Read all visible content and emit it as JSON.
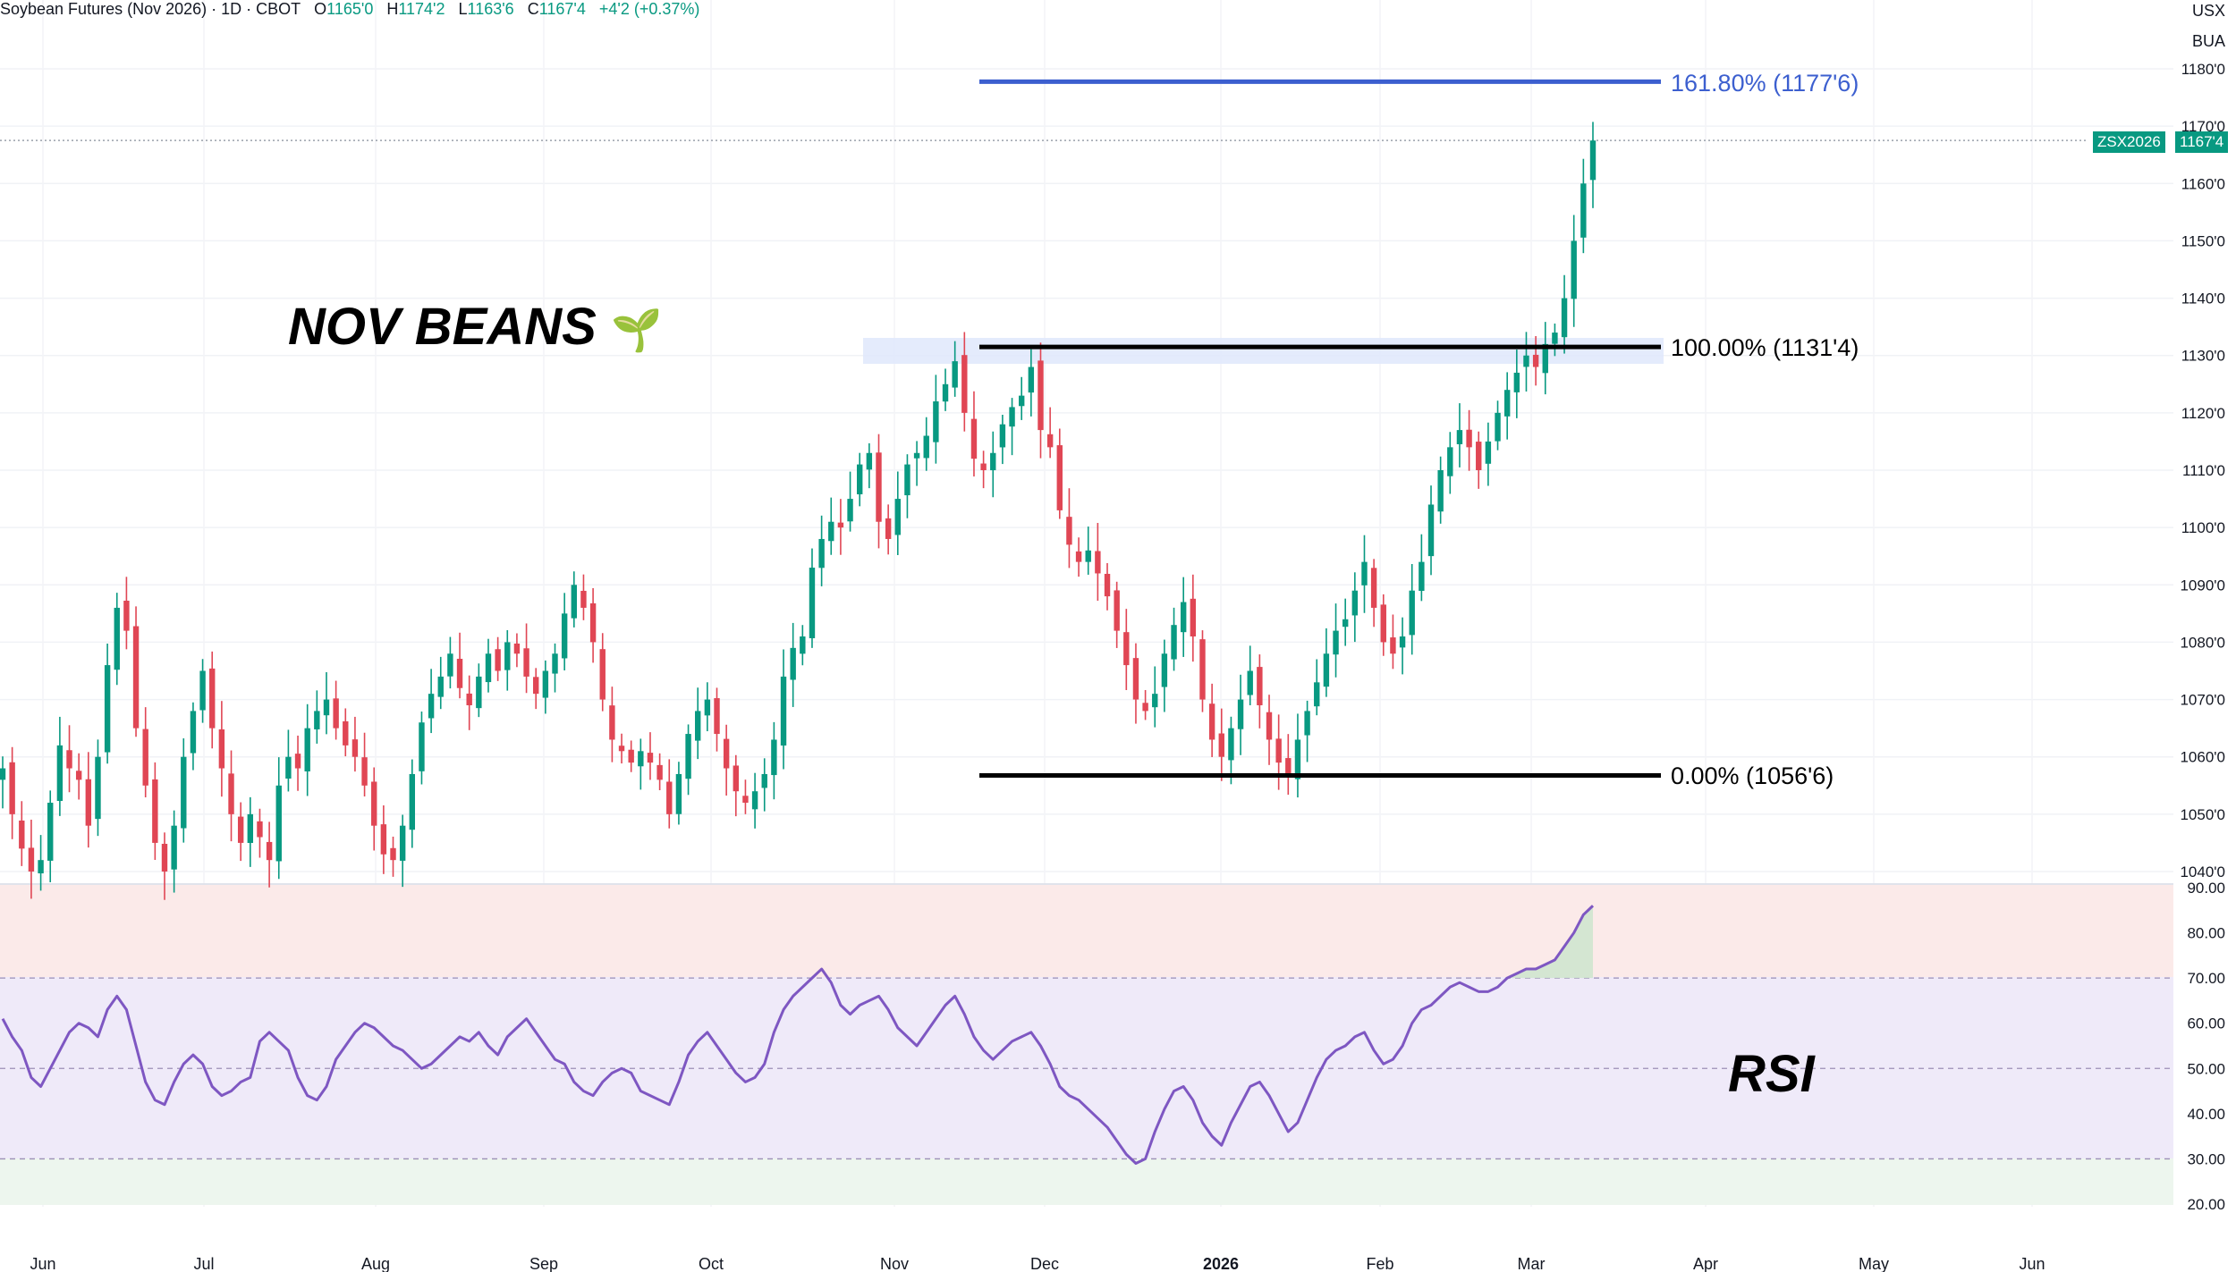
{
  "header": {
    "symbol": "Soybean Futures (Nov 2026) · 1D · CBOT",
    "o_label": "O",
    "o_value": "1165'0",
    "h_label": "H",
    "h_value": "1174'2",
    "l_label": "L",
    "l_value": "1163'6",
    "c_label": "C",
    "c_value": "1167'4",
    "change": "+4'2 (+0.37%)"
  },
  "currency": "USX",
  "unit": "BUA",
  "price_tag": {
    "symbol": "ZSX2026",
    "value": "1167'4"
  },
  "annotations": {
    "title": "NOV BEANS",
    "title_emoji": "🌱",
    "rsi": "RSI"
  },
  "colors": {
    "up": "#089981",
    "down": "#e04654",
    "rsi_line": "#7e57c2",
    "fib_top": "#3c5fcf",
    "fib_line": "#000000"
  },
  "chart_data": [
    {
      "type": "candlestick",
      "y_ticks": [
        "1040'0",
        "1050'0",
        "1060'0",
        "1070'0",
        "1080'0",
        "1090'0",
        "1100'0",
        "1110'0",
        "1120'0",
        "1130'0",
        "1140'0",
        "1150'0",
        "1160'0",
        "1170'0",
        "1180'0"
      ],
      "ylim": [
        1038,
        1183
      ],
      "x_tick_labels": [
        "Jun",
        "Jul",
        "Aug",
        "Sep",
        "Oct",
        "Nov",
        "Dec",
        "2026",
        "Feb",
        "Mar",
        "Apr",
        "May",
        "Jun"
      ],
      "last_close": 1167.5,
      "fib_levels": [
        {
          "label": "161.80% (1177'6)",
          "value": 1177.75
        },
        {
          "label": "100.00% (1131'4)",
          "value": 1131.5
        },
        {
          "label": "0.00% (1056'6)",
          "value": 1056.75
        }
      ],
      "close": [
        1058,
        1050,
        1044,
        1040,
        1042,
        1052,
        1062,
        1058,
        1056,
        1048,
        1060,
        1076,
        1086,
        1082,
        1065,
        1055,
        1045,
        1040,
        1048,
        1060,
        1068,
        1075,
        1065,
        1058,
        1050,
        1045,
        1050,
        1046,
        1042,
        1055,
        1060,
        1058,
        1065,
        1068,
        1070,
        1065,
        1062,
        1060,
        1055,
        1048,
        1043,
        1042,
        1048,
        1057,
        1066,
        1071,
        1074,
        1078,
        1072,
        1069,
        1074,
        1078,
        1075,
        1080,
        1078,
        1074,
        1071,
        1075,
        1078,
        1085,
        1090,
        1086,
        1080,
        1070,
        1063,
        1061,
        1059,
        1061,
        1059,
        1056,
        1050,
        1057,
        1064,
        1068,
        1070,
        1064,
        1058,
        1054,
        1052,
        1054,
        1057,
        1063,
        1074,
        1079,
        1081,
        1093,
        1098,
        1101,
        1100,
        1105,
        1111,
        1113,
        1101,
        1098,
        1105,
        1111,
        1113,
        1116,
        1122,
        1125,
        1129,
        1120,
        1112,
        1110,
        1113,
        1118,
        1121,
        1123,
        1128,
        1117,
        1114,
        1103,
        1097,
        1094,
        1096,
        1092,
        1088,
        1082,
        1076,
        1070,
        1068,
        1071,
        1078,
        1083,
        1087,
        1081,
        1070,
        1063,
        1060,
        1065,
        1070,
        1075,
        1069,
        1063,
        1059,
        1057,
        1063,
        1068,
        1073,
        1078,
        1082,
        1084,
        1089,
        1094,
        1086,
        1080,
        1078,
        1081,
        1089,
        1094,
        1104,
        1110,
        1114,
        1117,
        1114,
        1110,
        1115,
        1120,
        1124,
        1127,
        1130,
        1128,
        1132,
        1134,
        1140,
        1150,
        1160,
        1167.5
      ],
      "rsi": {
        "y_ticks": [
          "20.00",
          "30.00",
          "40.00",
          "50.00",
          "60.00",
          "70.00",
          "80.00",
          "90.00"
        ],
        "ylim": [
          20,
          90
        ],
        "levels": [
          30,
          50,
          70
        ],
        "values": [
          61,
          57,
          54,
          48,
          46,
          50,
          54,
          58,
          60,
          59,
          57,
          63,
          66,
          63,
          55,
          47,
          43,
          42,
          47,
          51,
          53,
          51,
          46,
          44,
          45,
          47,
          48,
          56,
          58,
          56,
          54,
          48,
          44,
          43,
          46,
          52,
          55,
          58,
          60,
          59,
          57,
          55,
          54,
          52,
          50,
          51,
          53,
          55,
          57,
          56,
          58,
          55,
          53,
          57,
          59,
          61,
          58,
          55,
          52,
          51,
          47,
          45,
          44,
          47,
          49,
          50,
          49,
          45,
          44,
          43,
          42,
          47,
          53,
          56,
          58,
          55,
          52,
          49,
          47,
          48,
          51,
          58,
          63,
          66,
          68,
          70,
          72,
          69,
          64,
          62,
          64,
          65,
          66,
          63,
          59,
          57,
          55,
          58,
          61,
          64,
          66,
          62,
          57,
          54,
          52,
          54,
          56,
          57,
          58,
          55,
          51,
          46,
          44,
          43,
          41,
          39,
          37,
          34,
          31,
          29,
          30,
          36,
          41,
          45,
          46,
          43,
          38,
          35,
          33,
          38,
          42,
          46,
          47,
          44,
          40,
          36,
          38,
          43,
          48,
          52,
          54,
          55,
          57,
          58,
          54,
          51,
          52,
          55,
          60,
          63,
          64,
          66,
          68,
          69,
          68,
          67,
          67,
          68,
          70,
          71,
          72,
          72,
          73,
          74,
          77,
          80,
          84,
          86
        ]
      }
    }
  ]
}
